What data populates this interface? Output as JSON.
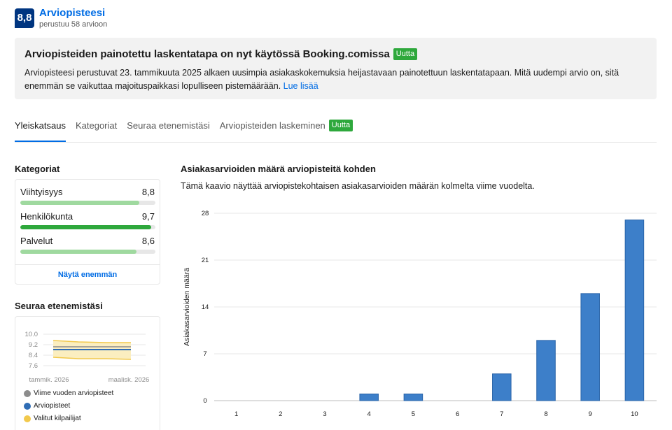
{
  "header": {
    "score": "8,8",
    "title": "Arviopisteesi",
    "subtitle": "perustuu 58 arvioon",
    "score_color": "#003580"
  },
  "notice": {
    "title": "Arviopisteiden painotettu laskentatapa on nyt käytössä Booking.comissa",
    "badge": "Uutta",
    "body": "Arviopisteesi perustuvat 23. tammikuuta 2025 alkaen uusimpia asiakaskokemuksia heijastavaan painotettuun laskentatapaan. Mitä uudempi arvio on, sitä enemmän se vaikuttaa majoituspaikkasi lopulliseen pistemäärään.",
    "link": "Lue lisää"
  },
  "tabs": [
    {
      "label": "Yleiskatsaus",
      "active": true
    },
    {
      "label": "Kategoriat"
    },
    {
      "label": "Seuraa etenemistäsi"
    },
    {
      "label": "Arviopisteiden laskeminen",
      "badge": "Uutta"
    }
  ],
  "categories": {
    "heading": "Kategoriat",
    "items": [
      {
        "name": "Viihtyisyys",
        "score": "8,8",
        "fill": 0.88,
        "color": "#9fd99f"
      },
      {
        "name": "Henkilökunta",
        "score": "9,7",
        "fill": 0.97,
        "color": "#2ea83c"
      },
      {
        "name": "Palvelut",
        "score": "8,6",
        "fill": 0.86,
        "color": "#9fd99f"
      }
    ],
    "show_more": "Näytä enemmän"
  },
  "follow": {
    "heading": "Seuraa etenemistäsi",
    "yticks": [
      "10.0",
      "9.2",
      "8.4",
      "7.6"
    ],
    "xticks": [
      "tammik. 2026",
      "maalisk. 2026"
    ],
    "legend": [
      {
        "label": "Viime vuoden arviopisteet",
        "color": "#8c8c8c"
      },
      {
        "label": "Arviopisteet",
        "color": "#2f6db5"
      },
      {
        "label": "Valitut kilpailijat",
        "color": "#f2c94c"
      }
    ]
  },
  "chart": {
    "title": "Asiakasarvioiden määrä arviopisteitä kohden",
    "subtitle": "Tämä kaavio näyttää arviopistekohtaisen asiakasarvioiden määrän kolmelta viime vuodelta."
  },
  "chart_data": {
    "type": "bar",
    "categories": [
      "1",
      "2",
      "3",
      "4",
      "5",
      "6",
      "7",
      "8",
      "9",
      "10"
    ],
    "values": [
      0,
      0,
      0,
      1,
      1,
      0,
      4,
      9,
      16,
      27
    ],
    "ylabel": "Asiakasarvioiden määrä",
    "xlabel": "",
    "yticks": [
      0,
      7,
      14,
      21,
      28
    ],
    "ylim": [
      0,
      28
    ],
    "grid": true,
    "bar_color": "#3d7fc9"
  }
}
